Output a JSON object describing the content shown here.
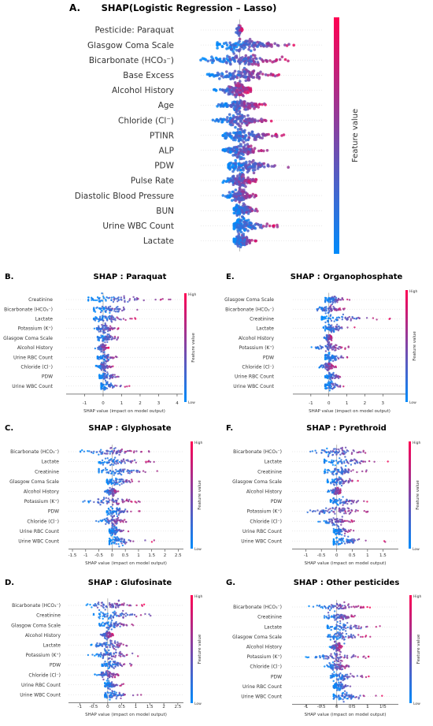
{
  "figure": {
    "colors": {
      "high": "#ff0052",
      "low": "#008bfb",
      "mid": "#7a2fd0"
    },
    "legend_high": "High",
    "legend_low": "Low",
    "feature_value_label": "Feature value"
  },
  "chart_data": [
    {
      "panel": "A.",
      "title": "SHAP(Logistic Regression – Lasso)",
      "type": "scatter",
      "features": [
        "Pesticide: Paraquat",
        "Glasgow Coma Scale",
        "Bicarbonate (HCO₃⁻)",
        "Base Excess",
        "Alcohol History",
        "Age",
        "Chloride (Cl⁻)",
        "PTINR",
        "ALP",
        "PDW",
        "Pulse Rate",
        "Diastolic Blood Pressure",
        "BUN",
        "Urine WBC Count",
        "Lactate"
      ],
      "spread": [
        [
          -0.1,
          0.05
        ],
        [
          -0.4,
          1.1
        ],
        [
          -0.7,
          1.0
        ],
        [
          -0.6,
          0.8
        ],
        [
          -0.5,
          0.2
        ],
        [
          -0.4,
          0.5
        ],
        [
          -0.5,
          0.6
        ],
        [
          -0.3,
          0.8
        ],
        [
          -0.3,
          0.5
        ],
        [
          -0.2,
          0.9
        ],
        [
          -0.3,
          0.3
        ],
        [
          -0.3,
          0.3
        ],
        [
          -0.1,
          0.4
        ],
        [
          -0.1,
          0.7
        ],
        [
          -0.1,
          0.3
        ]
      ],
      "xlim": [
        -0.7,
        1.5
      ],
      "xticks": [],
      "xlabel": "",
      "feature_value_label": "Feature value"
    },
    {
      "panel": "B.",
      "title": "SHAP : Paraquat",
      "type": "scatter",
      "features": [
        "Creatinine",
        "Bicarbonate (HCO₃⁻)",
        "Lactate",
        "Potassium (K⁺)",
        "Glasgow Coma Scale",
        "Alcohol History",
        "Urine RBC Count",
        "Chloride (Cl⁻)",
        "PDW",
        "Urine WBC Count"
      ],
      "spread": [
        [
          -0.8,
          3.8
        ],
        [
          -0.5,
          2.5
        ],
        [
          -0.5,
          1.8
        ],
        [
          -0.6,
          0.9
        ],
        [
          -0.3,
          1.2
        ],
        [
          -0.5,
          0.3
        ],
        [
          -0.3,
          0.9
        ],
        [
          -0.4,
          0.6
        ],
        [
          -0.2,
          1.2
        ],
        [
          -0.1,
          1.5
        ]
      ],
      "xlim": [
        -2,
        4.3
      ],
      "xticks": [
        -1,
        0,
        1,
        2,
        3,
        4
      ],
      "xlabel": "SHAP value (impact on model output)"
    },
    {
      "panel": "E.",
      "title": "SHAP : Organophosphate",
      "type": "scatter",
      "features": [
        "Glasgow Coma Scale",
        "Bicarbonate (HCO₃⁻)",
        "Creatinine",
        "Lactate",
        "Alcohol History",
        "Potassium (K⁺)",
        "PDW",
        "Chloride (Cl⁻)",
        "Urine RBC Count",
        "Urine WBC Count"
      ],
      "spread": [
        [
          -0.2,
          1.2
        ],
        [
          -0.8,
          1.0
        ],
        [
          -0.4,
          3.5
        ],
        [
          -0.3,
          1.5
        ],
        [
          -0.3,
          0.2
        ],
        [
          -1.0,
          1.2
        ],
        [
          -0.2,
          1.3
        ],
        [
          -0.7,
          0.4
        ],
        [
          -0.2,
          0.9
        ],
        [
          -0.2,
          1.1
        ]
      ],
      "xlim": [
        -2,
        4.3
      ],
      "xticks": [
        -1,
        0,
        1,
        2,
        3
      ],
      "xlabel": "SHAP value (impact on model output)"
    },
    {
      "panel": "C.",
      "title": "SHAP : Glyphosate",
      "type": "scatter",
      "features": [
        "Bicarbonate (HCO₃⁻)",
        "Lactate",
        "Creatinine",
        "Glasgow Coma Scale",
        "Alcohol History",
        "Potassium (K⁺)",
        "PDW",
        "Chloride (Cl⁻)",
        "Urine RBC Count",
        "Urine WBC Count"
      ],
      "spread": [
        [
          -1.2,
          1.5
        ],
        [
          -0.5,
          1.7
        ],
        [
          -0.5,
          2.3
        ],
        [
          -0.2,
          1.2
        ],
        [
          -0.3,
          0.3
        ],
        [
          -1.1,
          1.1
        ],
        [
          -0.2,
          1.1
        ],
        [
          -0.6,
          0.7
        ],
        [
          -0.1,
          0.7
        ],
        [
          -0.1,
          1.6
        ]
      ],
      "xlim": [
        -1.65,
        2.7
      ],
      "xticks": [
        -1.5,
        -1.0,
        -0.5,
        0.0,
        0.5,
        1.0,
        1.5,
        2.0,
        2.5
      ],
      "xlabel": "SHAP value (impact on model output)"
    },
    {
      "panel": "F.",
      "title": "SHAP : Pyrethroid",
      "type": "scatter",
      "features": [
        "Bicarbonate (HCO₃⁻)",
        "Lactate",
        "Creatinine",
        "Glasgow Coma Scale",
        "Alcohol History",
        "PDW",
        "Potassium (K⁺)",
        "Chloride (Cl⁻)",
        "Urine RBC Count",
        "Urine WBC Count"
      ],
      "spread": [
        [
          -0.9,
          1.4
        ],
        [
          -0.4,
          1.8
        ],
        [
          -0.4,
          1.2
        ],
        [
          -0.3,
          0.8
        ],
        [
          -0.3,
          0.2
        ],
        [
          -0.2,
          1.0
        ],
        [
          -1.2,
          1.2
        ],
        [
          -0.6,
          0.6
        ],
        [
          -0.1,
          0.6
        ],
        [
          -0.1,
          1.7
        ]
      ],
      "xlim": [
        -1.45,
        2.0
      ],
      "xticks": [
        -1.0,
        -0.5,
        0.0,
        0.5,
        1.0,
        1.5
      ],
      "xlabel": "SHAP value (impact on model output)"
    },
    {
      "panel": "D.",
      "title": "SHAP : Glufosinate",
      "type": "scatter",
      "features": [
        "Bicarbonate (HCO₃⁻)",
        "Creatinine",
        "Glasgow Coma Scale",
        "Alcohol History",
        "Lactate",
        "Potassium (K⁺)",
        "PDW",
        "Chloride (Cl⁻)",
        "Urine RBC Count",
        "Urine WBC Count"
      ],
      "spread": [
        [
          -1.1,
          1.3
        ],
        [
          -0.5,
          2.3
        ],
        [
          -0.3,
          1.1
        ],
        [
          -0.3,
          0.2
        ],
        [
          -0.6,
          1.0
        ],
        [
          -0.7,
          1.3
        ],
        [
          -0.2,
          1.1
        ],
        [
          -0.5,
          0.5
        ],
        [
          -0.1,
          0.6
        ],
        [
          -0.1,
          1.2
        ]
      ],
      "xlim": [
        -1.4,
        2.7
      ],
      "xticks": [
        -1.0,
        -0.5,
        0.0,
        0.5,
        1.0,
        1.5,
        2.0,
        2.5
      ],
      "xlabel": "SHAP value (impact on model output)"
    },
    {
      "panel": "G.",
      "title": "SHAP : Other pesticides",
      "type": "scatter",
      "features": [
        "Bicarbonate (HCO₃⁻)",
        "Creatinine",
        "Lactate",
        "Glasgow Coma Scale",
        "Alcohol History",
        "Potassium (K⁺)",
        "Chloride (Cl⁻)",
        "PDW",
        "Urine RBC Count",
        "Urine WBC Count"
      ],
      "spread": [
        [
          -0.9,
          1.1
        ],
        [
          -0.4,
          0.8
        ],
        [
          -0.3,
          1.7
        ],
        [
          -0.3,
          1.1
        ],
        [
          -0.3,
          0.2
        ],
        [
          -1.0,
          1.1
        ],
        [
          -0.4,
          0.6
        ],
        [
          -0.2,
          1.1
        ],
        [
          -0.1,
          0.6
        ],
        [
          -0.1,
          1.6
        ]
      ],
      "xlim": [
        -1.45,
        2.0
      ],
      "xticks": [
        -1.0,
        -0.5,
        0.0,
        0.5,
        1.0,
        1.5
      ],
      "xlabel": "SHAP value (impact on model output)"
    }
  ]
}
